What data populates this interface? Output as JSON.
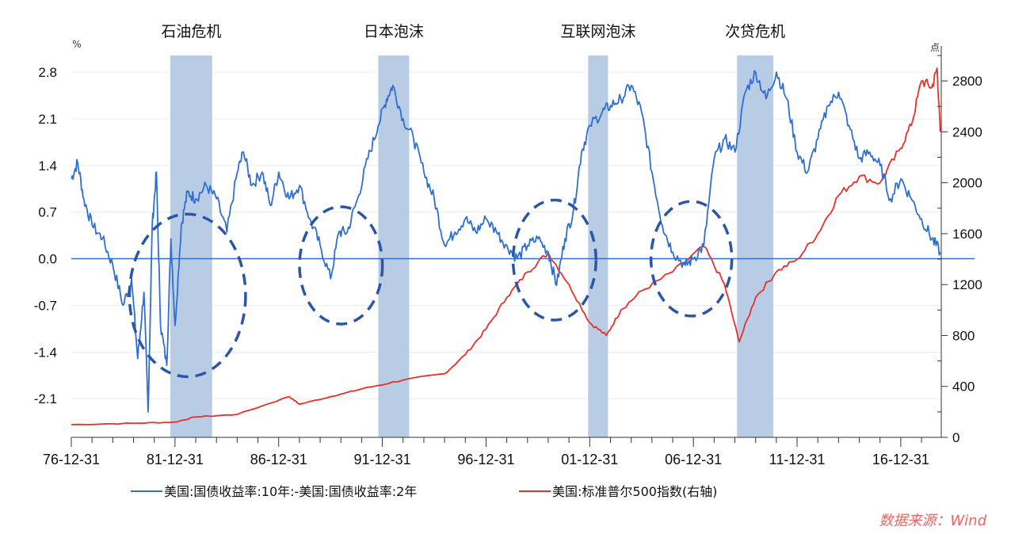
{
  "chart_data": {
    "type": "line",
    "title": "",
    "left_axis": {
      "unit": "%",
      "ticks": [
        "2.8",
        "2.1",
        "1.4",
        "0.7",
        "0.0",
        "-0.7",
        "-1.4",
        "-2.1"
      ],
      "tick_values": [
        2.8,
        2.1,
        1.4,
        0.7,
        0,
        -0.7,
        -1.4,
        -2.1
      ],
      "ylim": [
        -2.68,
        3.05
      ]
    },
    "right_axis": {
      "unit": "点",
      "ticks": [
        "2800",
        "2400",
        "2000",
        "1600",
        "1200",
        "800",
        "400",
        "0"
      ],
      "tick_values": [
        2800,
        2400,
        2000,
        1600,
        1200,
        800,
        400,
        0
      ],
      "ylim": [
        0,
        3000
      ]
    },
    "x_axis": {
      "ticks": [
        "76-12-31",
        "81-12-31",
        "86-12-31",
        "91-12-31",
        "96-12-31",
        "01-12-31",
        "06-12-31",
        "11-12-31",
        "16-12-31"
      ],
      "tick_values": [
        1976.997,
        1981.997,
        1986.997,
        1991.997,
        1996.997,
        2001.997,
        2006.997,
        2011.997,
        2016.997
      ],
      "xlim": [
        1976.997,
        2018.95
      ]
    },
    "grid": "horizontal",
    "legend_position": "bottom",
    "colors": {
      "spread": "#2f6fcf",
      "sp500": "#e8302a",
      "shade": "#b8cce6",
      "circle": "#2a56a8"
    },
    "shaded_periods": [
      {
        "label": "石油危机",
        "start": 1981.77,
        "end": 1983.79
      },
      {
        "label": "日本泡沫",
        "start": 1991.8,
        "end": 1993.29
      },
      {
        "label": "互联网泡沫",
        "start": 2001.92,
        "end": 2002.88
      },
      {
        "label": "次贷危机",
        "start": 2009.1,
        "end": 2010.85
      }
    ],
    "circled_regions": [
      {
        "center_year": 1982.6,
        "center_value": -0.55,
        "rx_years": 2.8,
        "ry_value": 1.22
      },
      {
        "center_year": 1990.0,
        "center_value": -0.1,
        "rx_years": 2.0,
        "ry_value": 0.88
      },
      {
        "center_year": 2000.3,
        "center_value": -0.02,
        "rx_years": 2.0,
        "ry_value": 0.9
      },
      {
        "center_year": 2006.9,
        "center_value": 0.0,
        "rx_years": 1.95,
        "ry_value": 0.86
      }
    ],
    "series": [
      {
        "name": "美国:国债收益率:10年-美国:国债收益率:2年",
        "axis": "left",
        "x": [
          1977.0,
          1977.3,
          1977.6,
          1978.0,
          1978.5,
          1979.0,
          1979.5,
          1979.9,
          1980.2,
          1980.5,
          1980.7,
          1980.9,
          1981.1,
          1981.3,
          1981.6,
          1981.8,
          1982.0,
          1982.3,
          1982.6,
          1983.0,
          1983.5,
          1984.0,
          1984.5,
          1985.0,
          1985.3,
          1985.7,
          1986.2,
          1986.6,
          1987.0,
          1987.5,
          1988.0,
          1988.5,
          1989.0,
          1989.5,
          1989.9,
          1990.3,
          1990.8,
          1991.3,
          1991.8,
          1992.2,
          1992.5,
          1993.0,
          1993.5,
          1994.0,
          1994.5,
          1995.0,
          1995.5,
          1996.0,
          1996.5,
          1997.0,
          1997.5,
          1998.0,
          1998.5,
          1999.0,
          1999.5,
          2000.0,
          2000.4,
          2000.8,
          2001.2,
          2001.6,
          2002.0,
          2002.6,
          2003.0,
          2003.5,
          2004.0,
          2004.5,
          2005.0,
          2005.5,
          2006.0,
          2006.6,
          2007.0,
          2007.5,
          2008.0,
          2008.5,
          2009.0,
          2009.5,
          2010.0,
          2010.5,
          2011.0,
          2011.5,
          2012.0,
          2012.5,
          2013.0,
          2013.5,
          2014.0,
          2014.5,
          2015.0,
          2015.5,
          2016.0,
          2016.5,
          2017.0,
          2017.5,
          2018.0,
          2018.5,
          2018.9
        ],
        "values": [
          1.2,
          1.45,
          0.9,
          0.5,
          0.3,
          -0.1,
          -0.7,
          -0.3,
          -1.5,
          -0.5,
          -2.3,
          0.5,
          1.3,
          -1.0,
          -1.6,
          0.3,
          -1.0,
          0.5,
          1.0,
          0.9,
          1.1,
          0.9,
          0.4,
          1.3,
          1.6,
          1.1,
          1.3,
          0.8,
          1.3,
          0.9,
          1.1,
          0.6,
          0.2,
          -0.3,
          0.4,
          0.4,
          0.9,
          1.5,
          2.0,
          2.4,
          2.6,
          2.1,
          1.8,
          1.3,
          0.9,
          0.2,
          0.4,
          0.6,
          0.4,
          0.6,
          0.4,
          0.2,
          0.0,
          0.2,
          0.3,
          0.1,
          -0.4,
          0.3,
          0.7,
          1.6,
          2.0,
          2.2,
          2.3,
          2.4,
          2.6,
          2.2,
          1.3,
          0.5,
          0.1,
          -0.1,
          0.0,
          0.2,
          1.5,
          1.8,
          1.6,
          2.5,
          2.8,
          2.4,
          2.8,
          2.4,
          1.6,
          1.3,
          1.8,
          2.3,
          2.5,
          2.0,
          1.5,
          1.6,
          1.4,
          0.9,
          1.2,
          0.9,
          0.6,
          0.3,
          0.1
        ]
      },
      {
        "name": "美国:标准普尔500指数(右轴)",
        "axis": "right",
        "x": [
          1977.0,
          1980.0,
          1982.0,
          1983.0,
          1985.0,
          1987.5,
          1988.0,
          1990.0,
          1991.0,
          1993.0,
          1995.0,
          1996.0,
          1997.0,
          1998.0,
          1999.0,
          2000.0,
          2001.0,
          2002.0,
          2002.8,
          2003.5,
          2004.5,
          2006.0,
          2007.5,
          2008.5,
          2009.2,
          2010.0,
          2011.0,
          2012.0,
          2013.0,
          2014.0,
          2015.0,
          2016.0,
          2016.9,
          2017.5,
          2018.0,
          2018.5,
          2018.75,
          2018.9
        ],
        "values": [
          100,
          110,
          120,
          160,
          180,
          320,
          260,
          340,
          380,
          450,
          500,
          650,
          850,
          1100,
          1300,
          1450,
          1200,
          900,
          800,
          1000,
          1150,
          1300,
          1500,
          1200,
          750,
          1100,
          1300,
          1400,
          1600,
          1900,
          2050,
          2000,
          2250,
          2450,
          2800,
          2750,
          2900,
          2400
        ]
      }
    ]
  },
  "legend": {
    "spread_label": "美国:国债收益率:10年:-美国:国债收益率:2年",
    "sp500_label": "美国:标准普尔500指数(右轴)"
  },
  "source": "数据来源：Wind"
}
